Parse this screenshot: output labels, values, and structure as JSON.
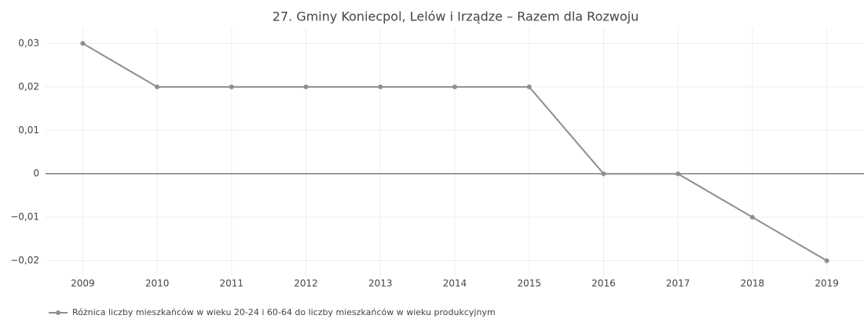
{
  "chart_data": {
    "type": "line",
    "title": "27. Gminy Koniecpol, Lelów  i Irządze – Razem dla Rozwoju",
    "categories": [
      "2009",
      "2010",
      "2011",
      "2012",
      "2013",
      "2014",
      "2015",
      "2016",
      "2017",
      "2018",
      "2019"
    ],
    "series": [
      {
        "name": "Różnica liczby mieszkańców w wieku 20-24 i 60-64 do liczby mieszkańców w wieku produkcyjnym",
        "color": "#87928f",
        "values": [
          0.03,
          0.02,
          0.02,
          0.02,
          0.02,
          0.02,
          0.02,
          0,
          0,
          -0.01,
          -0.02
        ]
      }
    ],
    "ylim": [
      -0.0235,
      0.0335
    ],
    "yticks": [
      {
        "value": -0.02,
        "label": "−0,02"
      },
      {
        "value": -0.01,
        "label": "−0,01"
      },
      0,
      {
        "value": 0.01,
        "label": "0,01"
      },
      {
        "value": 0.02,
        "label": "0,02"
      },
      {
        "value": 0.03,
        "label": "0,03"
      }
    ],
    "grid": true,
    "legend": "bottom-left"
  }
}
